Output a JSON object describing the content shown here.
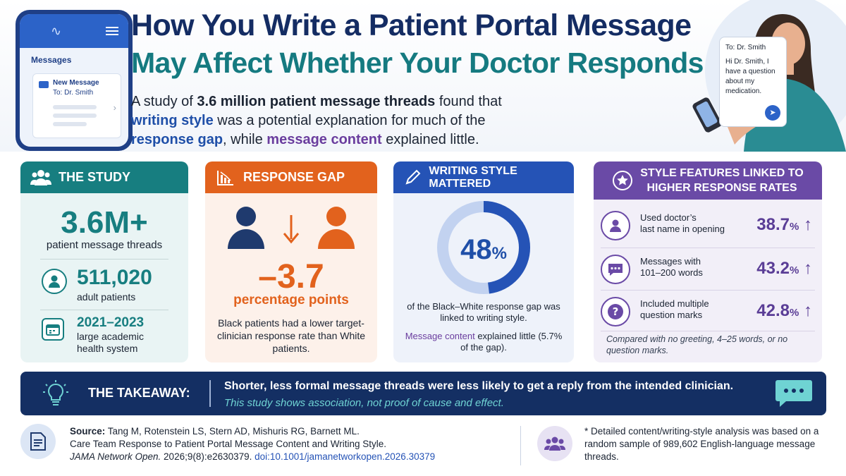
{
  "header": {
    "title_line1": "How You Write a Patient Portal Message",
    "title_line2": "May Affect Whether Your Doctor Responds",
    "intro_a": "A study of ",
    "intro_b": "3.6 million patient message threads",
    "intro_c": " found that ",
    "intro_d": "writing style",
    "intro_e": " was a potential explanation for much of the ",
    "intro_f": "response gap",
    "intro_g": ", while ",
    "intro_h": "message content",
    "intro_i": " explained little."
  },
  "phone": {
    "title": "Messages",
    "msg_title": "New Message",
    "msg_to": "To: Dr. Smith"
  },
  "bubble": {
    "to": "To: Dr. Smith",
    "body": "Hi Dr. Smith, I have a question about my medication."
  },
  "study": {
    "heading": "THE STUDY",
    "threads_value": "3.6M+",
    "threads_label": "patient message threads",
    "patients_value": "511,020",
    "patients_label": "adult patients",
    "years_value": "2021–2023",
    "years_label_1": "large academic",
    "years_label_2": "health system"
  },
  "gap": {
    "heading": "RESPONSE GAP",
    "value": "–3.7",
    "unit": "percentage points",
    "description": "Black patients had a lower target-clinician response rate than White patients."
  },
  "style": {
    "heading": "WRITING STYLE MATTERED",
    "percent_value": 48,
    "percent_number": "48",
    "percent_sign": "%",
    "description": "of the Black–White response gap was linked to writing style.",
    "note_highlight": "Message content",
    "note_rest": " explained little (5.7% of the gap)."
  },
  "features": {
    "heading_1": "STYLE FEATURES LINKED TO",
    "heading_2": "HIGHER RESPONSE RATES",
    "items": [
      {
        "label_1": "Used doctor’s",
        "label_2": "last name in opening",
        "value": "38.7",
        "unit": "%",
        "arrow": "↑",
        "icon": "person-icon"
      },
      {
        "label_1": "Messages with",
        "label_2": "101–200 words",
        "value": "43.2",
        "unit": "%",
        "arrow": "↑",
        "icon": "chat-icon"
      },
      {
        "label_1": "Included multiple",
        "label_2": "question marks",
        "value": "42.8",
        "unit": "%",
        "arrow": "↑",
        "icon": "question-icon"
      }
    ],
    "footnote": "Compared with no greeting, 4–25 words, or no question marks."
  },
  "takeaway": {
    "label": "THE TAKEAWAY:",
    "main": "Shorter, less formal message threads were less likely to get a reply from the intended clinician.",
    "sub": "This study shows association, not proof of cause and effect."
  },
  "source": {
    "label": "Source:",
    "authors": " Tang M, Rotenstein LS, Stern AD, Mishuris RG, Barnett ML.",
    "title": "Care Team Response to Patient Portal Message Content and Writing Style.",
    "journal": "JAMA Network Open.",
    "citation": " 2026;9(8):e2630379. ",
    "doi": "doi:10.1001/jamanetworkopen.2026.30379"
  },
  "footnote": {
    "text": "* Detailed content/writing-style analysis was based on a random sample of 989,602 English-language message threads."
  },
  "colors": {
    "navy": "#142c63",
    "teal": "#177e80",
    "orange": "#e2621d",
    "blue": "#2553b6",
    "purple": "#6a4aa6"
  }
}
